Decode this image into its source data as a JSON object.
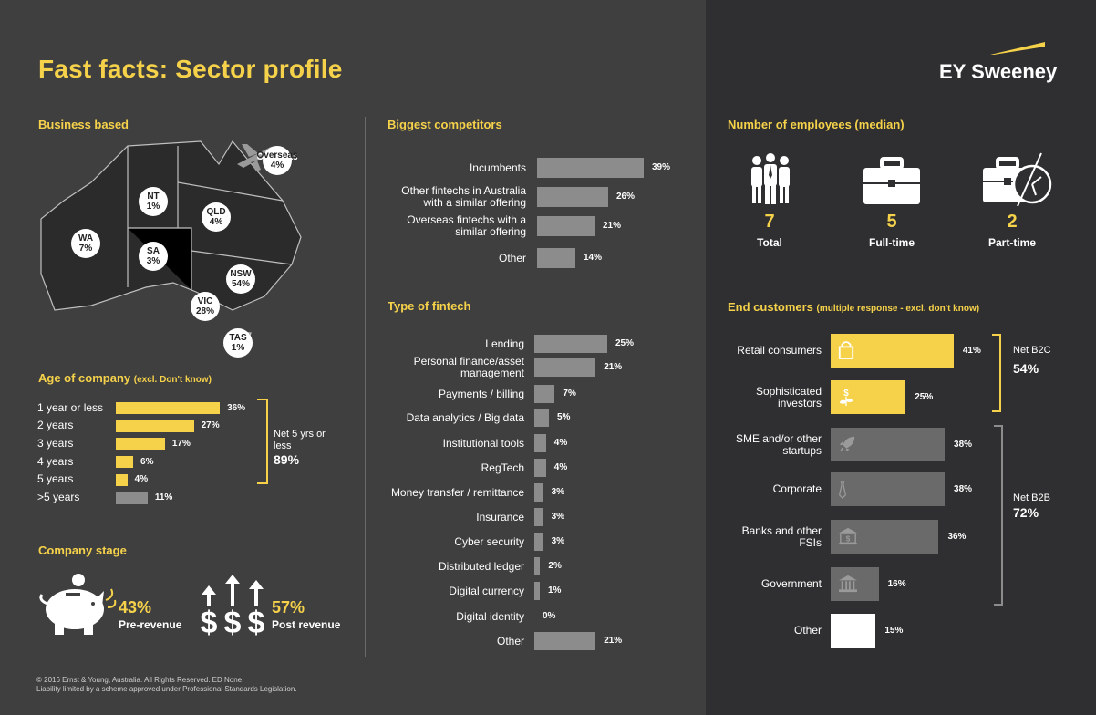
{
  "title": "Fast facts: Sector profile",
  "logo": {
    "text": "EY Sweeney"
  },
  "business_based": {
    "heading": "Business based",
    "regions": [
      {
        "name": "Overseas",
        "value": "4%"
      },
      {
        "name": "NT",
        "value": "1%"
      },
      {
        "name": "QLD",
        "value": "4%"
      },
      {
        "name": "WA",
        "value": "7%"
      },
      {
        "name": "SA",
        "value": "3%"
      },
      {
        "name": "NSW",
        "value": "54%"
      },
      {
        "name": "VIC",
        "value": "28%"
      },
      {
        "name": "TAS",
        "value": "1%"
      }
    ]
  },
  "age": {
    "heading": "Age of company",
    "note": "(excl. Don't know)",
    "net_label": "Net 5 yrs or less",
    "net_value": "89%"
  },
  "stage": {
    "heading": "Company stage",
    "pre_pct": "43%",
    "pre_label": "Pre-revenue",
    "post_pct": "57%",
    "post_label": "Post revenue"
  },
  "competitors": {
    "heading": "Biggest competitors"
  },
  "fintech": {
    "heading": "Type of fintech"
  },
  "employees": {
    "heading": "Number of employees (median)",
    "items": [
      {
        "value": "7",
        "label": "Total",
        "icon": "people-icon"
      },
      {
        "value": "5",
        "label": "Full-time",
        "icon": "briefcase-icon"
      },
      {
        "value": "2",
        "label": "Part-time",
        "icon": "briefcase-clock-icon"
      }
    ]
  },
  "end_customers": {
    "heading": "End customers",
    "note": "(multiple response - excl. don't know)",
    "net_b2c_label": "Net B2C",
    "net_b2c_value": "54%",
    "net_b2b_label": "Net B2B",
    "net_b2b_value": "72%"
  },
  "footer": {
    "line1": "© 2016 Ernst & Young, Australia. All Rights Reserved. ED None.",
    "line2": "Liability limited by a scheme approved under Professional Standards Legislation."
  },
  "colors": {
    "yellow": "#f6d24a",
    "grey": "#8c8c8c",
    "white": "#ffffff"
  },
  "chart_data": [
    {
      "type": "bar",
      "id": "age",
      "categories": [
        "1 year or less",
        "2 years",
        "3 years",
        "4 years",
        "5 years",
        ">5 years"
      ],
      "values": [
        36,
        27,
        17,
        6,
        4,
        11
      ],
      "labels": [
        "36%",
        "27%",
        "17%",
        "6%",
        "4%",
        "11%"
      ],
      "highlight": [
        true,
        true,
        true,
        true,
        true,
        false
      ]
    },
    {
      "type": "bar",
      "id": "competitors",
      "categories": [
        "Incumbents",
        "Other fintechs in Australia with a similar offering",
        "Overseas fintechs with a similar offering",
        "Other"
      ],
      "category_lines": [
        [
          "Incumbents"
        ],
        [
          "Other fintechs in Australia",
          "with a similar offering"
        ],
        [
          "Overseas fintechs with a",
          "similar offering"
        ],
        [
          "Other"
        ]
      ],
      "values": [
        39,
        26,
        21,
        14
      ],
      "labels": [
        "39%",
        "26%",
        "21%",
        "14%"
      ]
    },
    {
      "type": "bar",
      "id": "fintech",
      "categories": [
        "Lending",
        "Personal finance/asset management",
        "Payments / billing",
        "Data analytics / Big data",
        "Institutional tools",
        "RegTech",
        "Money transfer / remittance",
        "Insurance",
        "Cyber security",
        "Distributed ledger",
        "Digital currency",
        "Digital identity",
        "Other"
      ],
      "category_lines": [
        [
          "Lending"
        ],
        [
          "Personal finance/asset",
          "management"
        ],
        [
          "Payments / billing"
        ],
        [
          "Data analytics / Big data"
        ],
        [
          "Institutional tools"
        ],
        [
          "RegTech"
        ],
        [
          "Money transfer / remittance"
        ],
        [
          "Insurance"
        ],
        [
          "Cyber security"
        ],
        [
          "Distributed ledger"
        ],
        [
          "Digital currency"
        ],
        [
          "Digital identity"
        ],
        [
          "Other"
        ]
      ],
      "values": [
        25,
        21,
        7,
        5,
        4,
        4,
        3,
        3,
        3,
        2,
        1,
        0,
        21
      ],
      "labels": [
        "25%",
        "21%",
        "7%",
        "5%",
        "4%",
        "4%",
        "3%",
        "3%",
        "3%",
        "2%",
        "1%",
        "0%",
        "21%"
      ]
    },
    {
      "type": "bar",
      "id": "end_customers",
      "categories": [
        "Retail consumers",
        "Sophisticated investors",
        "SME and/or other startups",
        "Corporate",
        "Banks and other FSIs",
        "Government",
        "Other"
      ],
      "category_lines": [
        [
          "Retail consumers"
        ],
        [
          "Sophisticated",
          "investors"
        ],
        [
          "SME and/or other",
          "startups"
        ],
        [
          "Corporate"
        ],
        [
          "Banks and other",
          "FSIs"
        ],
        [
          "Government"
        ],
        [
          "Other"
        ]
      ],
      "values": [
        41,
        25,
        38,
        38,
        36,
        16,
        15
      ],
      "labels": [
        "41%",
        "25%",
        "38%",
        "38%",
        "36%",
        "16%",
        "15%"
      ],
      "colors": [
        "#f6d24a",
        "#f6d24a",
        "#6a6a6a",
        "#6a6a6a",
        "#6a6a6a",
        "#6a6a6a",
        "#ffffff"
      ],
      "icons": [
        "shopping-bag-icon",
        "money-plant-icon",
        "rocket-icon",
        "tie-icon",
        "bank-icon",
        "government-building-icon",
        ""
      ]
    }
  ]
}
